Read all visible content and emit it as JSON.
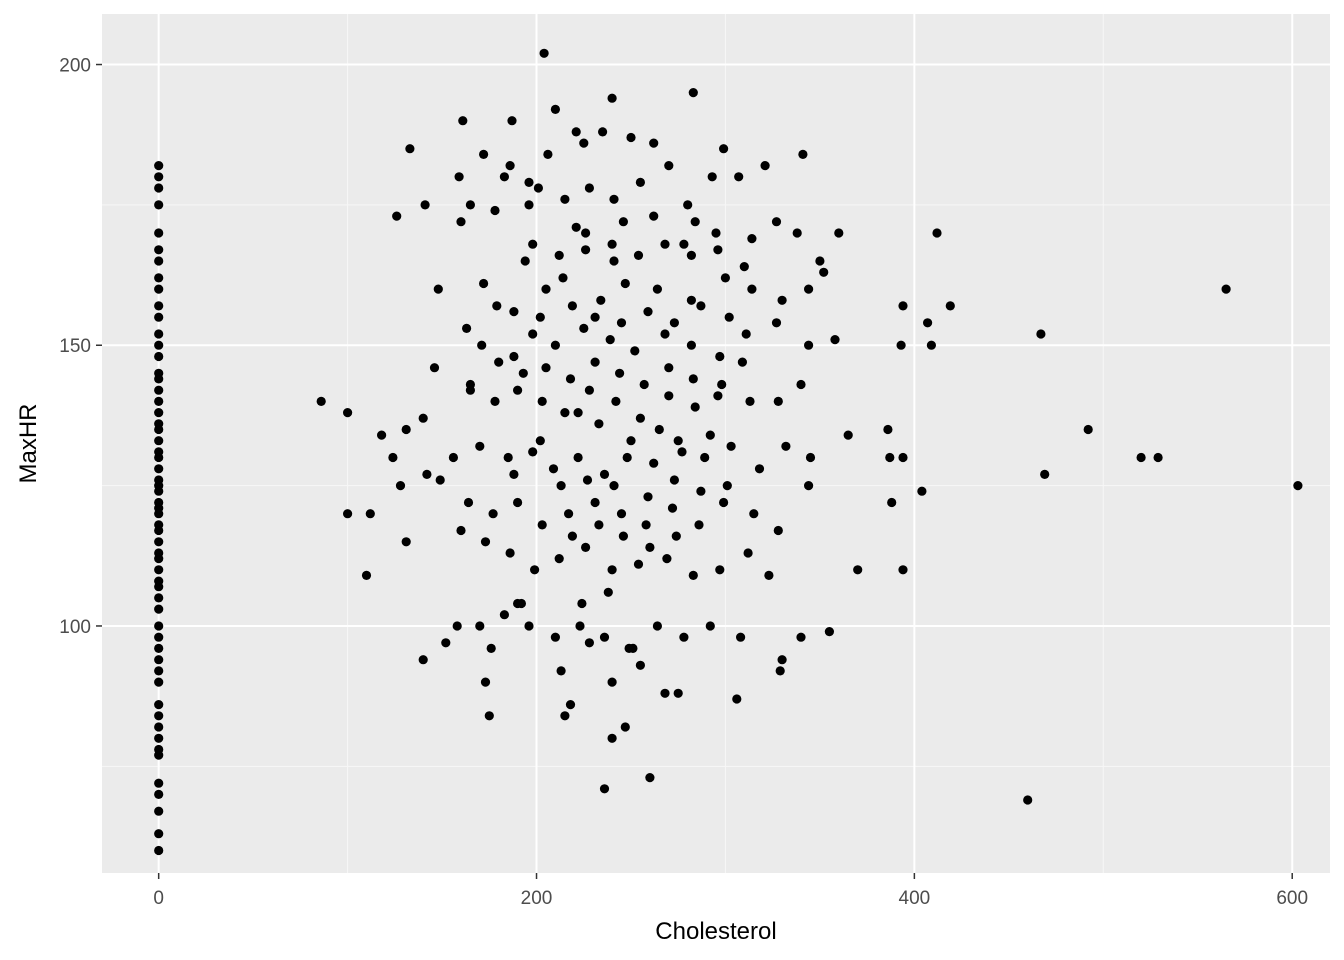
{
  "colors": {
    "panel_background": "#EBEBEB",
    "grid_major": "#FFFFFF",
    "grid_minor": "#F7F7F7",
    "point": "#000000",
    "tick_text": "#4D4D4D",
    "axis_title_text": "#000000"
  },
  "chart_data": {
    "type": "scatter",
    "title": "",
    "xlabel": "Cholesterol",
    "ylabel": "MaxHR",
    "xlim": [
      -30,
      620
    ],
    "ylim": [
      56,
      209
    ],
    "x_ticks": [
      0,
      200,
      400,
      600
    ],
    "y_ticks": [
      100,
      150,
      200
    ],
    "x_minor": [
      100,
      300,
      500
    ],
    "y_minor": [
      75,
      125,
      175
    ],
    "x_tick_labels": [
      "0",
      "200",
      "400",
      "600"
    ],
    "y_tick_labels": [
      "100",
      "150",
      "200"
    ],
    "grid": true,
    "legend": "none",
    "point_color": "#000000",
    "points": [
      [
        0,
        60
      ],
      [
        0,
        63
      ],
      [
        0,
        67
      ],
      [
        0,
        70
      ],
      [
        0,
        72
      ],
      [
        0,
        77
      ],
      [
        0,
        78
      ],
      [
        0,
        80
      ],
      [
        0,
        82
      ],
      [
        0,
        84
      ],
      [
        0,
        86
      ],
      [
        0,
        90
      ],
      [
        0,
        92
      ],
      [
        0,
        94
      ],
      [
        0,
        96
      ],
      [
        0,
        98
      ],
      [
        0,
        100
      ],
      [
        0,
        103
      ],
      [
        0,
        105
      ],
      [
        0,
        107
      ],
      [
        0,
        108
      ],
      [
        0,
        110
      ],
      [
        0,
        112
      ],
      [
        0,
        113
      ],
      [
        0,
        115
      ],
      [
        0,
        117
      ],
      [
        0,
        118
      ],
      [
        0,
        120
      ],
      [
        0,
        121
      ],
      [
        0,
        122
      ],
      [
        0,
        124
      ],
      [
        0,
        125
      ],
      [
        0,
        126
      ],
      [
        0,
        128
      ],
      [
        0,
        130
      ],
      [
        0,
        131
      ],
      [
        0,
        133
      ],
      [
        0,
        135
      ],
      [
        0,
        136
      ],
      [
        0,
        138
      ],
      [
        0,
        140
      ],
      [
        0,
        142
      ],
      [
        0,
        144
      ],
      [
        0,
        145
      ],
      [
        0,
        148
      ],
      [
        0,
        150
      ],
      [
        0,
        152
      ],
      [
        0,
        155
      ],
      [
        0,
        157
      ],
      [
        0,
        160
      ],
      [
        0,
        162
      ],
      [
        0,
        165
      ],
      [
        0,
        167
      ],
      [
        0,
        170
      ],
      [
        0,
        175
      ],
      [
        0,
        178
      ],
      [
        0,
        180
      ],
      [
        0,
        182
      ],
      [
        204,
        202
      ],
      [
        240,
        194
      ],
      [
        283,
        195
      ],
      [
        210,
        192
      ],
      [
        187,
        190
      ],
      [
        161,
        190
      ],
      [
        133,
        185
      ],
      [
        172,
        184
      ],
      [
        206,
        184
      ],
      [
        341,
        184
      ],
      [
        299,
        185
      ],
      [
        250,
        187
      ],
      [
        221,
        188
      ],
      [
        235,
        188
      ],
      [
        262,
        186
      ],
      [
        225,
        186
      ],
      [
        126,
        173
      ],
      [
        141,
        175
      ],
      [
        160,
        172
      ],
      [
        178,
        174
      ],
      [
        159,
        180
      ],
      [
        165,
        175
      ],
      [
        183,
        180
      ],
      [
        196,
        175
      ],
      [
        201,
        178
      ],
      [
        215,
        176
      ],
      [
        228,
        178
      ],
      [
        241,
        176
      ],
      [
        255,
        179
      ],
      [
        270,
        182
      ],
      [
        293,
        180
      ],
      [
        307,
        180
      ],
      [
        321,
        182
      ],
      [
        186,
        182
      ],
      [
        196,
        179
      ],
      [
        221,
        171
      ],
      [
        241,
        165
      ],
      [
        280,
        175
      ],
      [
        338,
        170
      ],
      [
        350,
        165
      ],
      [
        360,
        170
      ],
      [
        412,
        170
      ],
      [
        226,
        170
      ],
      [
        246,
        172
      ],
      [
        262,
        173
      ],
      [
        278,
        168
      ],
      [
        284,
        172
      ],
      [
        295,
        170
      ],
      [
        314,
        169
      ],
      [
        327,
        172
      ],
      [
        148,
        160
      ],
      [
        172,
        161
      ],
      [
        179,
        157
      ],
      [
        194,
        165
      ],
      [
        205,
        160
      ],
      [
        214,
        162
      ],
      [
        234,
        158
      ],
      [
        247,
        161
      ],
      [
        264,
        160
      ],
      [
        282,
        158
      ],
      [
        300,
        162
      ],
      [
        314,
        160
      ],
      [
        330,
        158
      ],
      [
        344,
        160
      ],
      [
        352,
        163
      ],
      [
        565,
        160
      ],
      [
        163,
        153
      ],
      [
        171,
        150
      ],
      [
        188,
        148
      ],
      [
        198,
        152
      ],
      [
        210,
        150
      ],
      [
        225,
        153
      ],
      [
        239,
        151
      ],
      [
        252,
        149
      ],
      [
        268,
        152
      ],
      [
        282,
        150
      ],
      [
        297,
        148
      ],
      [
        311,
        152
      ],
      [
        327,
        154
      ],
      [
        344,
        150
      ],
      [
        358,
        151
      ],
      [
        394,
        157
      ],
      [
        407,
        154
      ],
      [
        419,
        157
      ],
      [
        467,
        152
      ],
      [
        393,
        150
      ],
      [
        409,
        150
      ],
      [
        146,
        146
      ],
      [
        165,
        143
      ],
      [
        178,
        140
      ],
      [
        190,
        142
      ],
      [
        203,
        140
      ],
      [
        215,
        138
      ],
      [
        228,
        142
      ],
      [
        242,
        140
      ],
      [
        255,
        137
      ],
      [
        270,
        141
      ],
      [
        284,
        139
      ],
      [
        298,
        143
      ],
      [
        313,
        140
      ],
      [
        328,
        140
      ],
      [
        340,
        143
      ],
      [
        86,
        140
      ],
      [
        100,
        138
      ],
      [
        118,
        134
      ],
      [
        131,
        135
      ],
      [
        140,
        137
      ],
      [
        156,
        130
      ],
      [
        170,
        132
      ],
      [
        185,
        130
      ],
      [
        198,
        131
      ],
      [
        209,
        128
      ],
      [
        222,
        130
      ],
      [
        236,
        127
      ],
      [
        248,
        130
      ],
      [
        262,
        129
      ],
      [
        275,
        133
      ],
      [
        289,
        130
      ],
      [
        303,
        132
      ],
      [
        318,
        128
      ],
      [
        332,
        132
      ],
      [
        345,
        130
      ],
      [
        365,
        134
      ],
      [
        386,
        135
      ],
      [
        387,
        130
      ],
      [
        394,
        130
      ],
      [
        492,
        135
      ],
      [
        520,
        130
      ],
      [
        529,
        130
      ],
      [
        603,
        125
      ],
      [
        469,
        127
      ],
      [
        404,
        124
      ],
      [
        124,
        130
      ],
      [
        128,
        125
      ],
      [
        142,
        127
      ],
      [
        149,
        126
      ],
      [
        164,
        122
      ],
      [
        177,
        120
      ],
      [
        190,
        122
      ],
      [
        203,
        118
      ],
      [
        217,
        120
      ],
      [
        231,
        122
      ],
      [
        245,
        120
      ],
      [
        258,
        118
      ],
      [
        272,
        121
      ],
      [
        286,
        118
      ],
      [
        299,
        122
      ],
      [
        315,
        120
      ],
      [
        328,
        117
      ],
      [
        344,
        125
      ],
      [
        388,
        122
      ],
      [
        100,
        120
      ],
      [
        112,
        120
      ],
      [
        131,
        115
      ],
      [
        160,
        117
      ],
      [
        173,
        115
      ],
      [
        186,
        113
      ],
      [
        199,
        110
      ],
      [
        212,
        112
      ],
      [
        226,
        114
      ],
      [
        240,
        110
      ],
      [
        254,
        111
      ],
      [
        269,
        112
      ],
      [
        283,
        109
      ],
      [
        297,
        110
      ],
      [
        312,
        113
      ],
      [
        323,
        109
      ],
      [
        394,
        110
      ],
      [
        370,
        110
      ],
      [
        110,
        109
      ],
      [
        158,
        100
      ],
      [
        170,
        100
      ],
      [
        183,
        102
      ],
      [
        196,
        100
      ],
      [
        210,
        98
      ],
      [
        223,
        100
      ],
      [
        236,
        98
      ],
      [
        249,
        96
      ],
      [
        264,
        100
      ],
      [
        278,
        98
      ],
      [
        292,
        100
      ],
      [
        308,
        98
      ],
      [
        330,
        94
      ],
      [
        340,
        98
      ],
      [
        355,
        99
      ],
      [
        140,
        94
      ],
      [
        176,
        96
      ],
      [
        190,
        104
      ],
      [
        224,
        104
      ],
      [
        238,
        106
      ],
      [
        152,
        97
      ],
      [
        173,
        90
      ],
      [
        192,
        104
      ],
      [
        213,
        92
      ],
      [
        228,
        97
      ],
      [
        240,
        90
      ],
      [
        251,
        96
      ],
      [
        255,
        93
      ],
      [
        268,
        88
      ],
      [
        275,
        88
      ],
      [
        306,
        87
      ],
      [
        329,
        92
      ],
      [
        175,
        84
      ],
      [
        218,
        86
      ],
      [
        215,
        84
      ],
      [
        240,
        80
      ],
      [
        247,
        82
      ],
      [
        236,
        71
      ],
      [
        260,
        73
      ],
      [
        460,
        69
      ],
      [
        165,
        142
      ],
      [
        180,
        147
      ],
      [
        193,
        145
      ],
      [
        205,
        146
      ],
      [
        218,
        144
      ],
      [
        231,
        147
      ],
      [
        244,
        145
      ],
      [
        257,
        143
      ],
      [
        270,
        146
      ],
      [
        283,
        144
      ],
      [
        296,
        141
      ],
      [
        309,
        147
      ],
      [
        222,
        138
      ],
      [
        233,
        136
      ],
      [
        250,
        133
      ],
      [
        265,
        135
      ],
      [
        277,
        131
      ],
      [
        292,
        134
      ],
      [
        202,
        133
      ],
      [
        188,
        127
      ],
      [
        213,
        125
      ],
      [
        227,
        126
      ],
      [
        241,
        125
      ],
      [
        259,
        123
      ],
      [
        273,
        126
      ],
      [
        287,
        124
      ],
      [
        301,
        125
      ],
      [
        219,
        116
      ],
      [
        233,
        118
      ],
      [
        246,
        116
      ],
      [
        260,
        114
      ],
      [
        274,
        116
      ],
      [
        188,
        156
      ],
      [
        202,
        155
      ],
      [
        219,
        157
      ],
      [
        231,
        155
      ],
      [
        245,
        154
      ],
      [
        259,
        156
      ],
      [
        273,
        154
      ],
      [
        287,
        157
      ],
      [
        302,
        155
      ],
      [
        198,
        168
      ],
      [
        212,
        166
      ],
      [
        226,
        167
      ],
      [
        240,
        168
      ],
      [
        254,
        166
      ],
      [
        268,
        168
      ],
      [
        282,
        166
      ],
      [
        296,
        167
      ],
      [
        310,
        164
      ]
    ]
  }
}
